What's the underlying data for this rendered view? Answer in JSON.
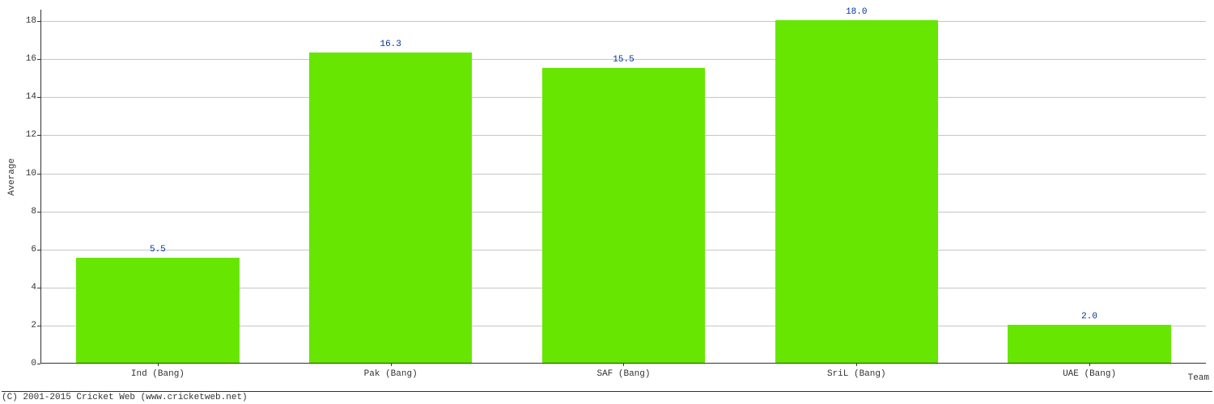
{
  "chart": {
    "type": "bar",
    "categories": [
      "Ind (Bang)",
      "Pak (Bang)",
      "SAF (Bang)",
      "SriL (Bang)",
      "UAE (Bang)"
    ],
    "values": [
      5.5,
      16.3,
      15.5,
      18.0,
      2.0
    ],
    "value_labels": [
      "5.5",
      "16.3",
      "15.5",
      "18.0",
      "2.0"
    ],
    "bar_color": "#66e600",
    "value_label_color": "#003399",
    "ylabel": "Average",
    "xlabel": "Team",
    "ylim": [
      0,
      18.6
    ],
    "yticks": [
      0,
      2,
      4,
      6,
      8,
      10,
      12,
      14,
      16,
      18
    ],
    "ytick_labels": [
      "0",
      "2",
      "4",
      "6",
      "8",
      "10",
      "12",
      "14",
      "16",
      "18"
    ],
    "grid_color": "#c6c6c6",
    "axis_color": "#323232",
    "background_color": "#ffffff",
    "axis_fontsize": 11,
    "value_fontsize": 11,
    "bar_width_ratio": 0.7,
    "font_family": "Courier New"
  },
  "footer": {
    "copyright": "(C) 2001-2015 Cricket Web (www.cricketweb.net)"
  }
}
